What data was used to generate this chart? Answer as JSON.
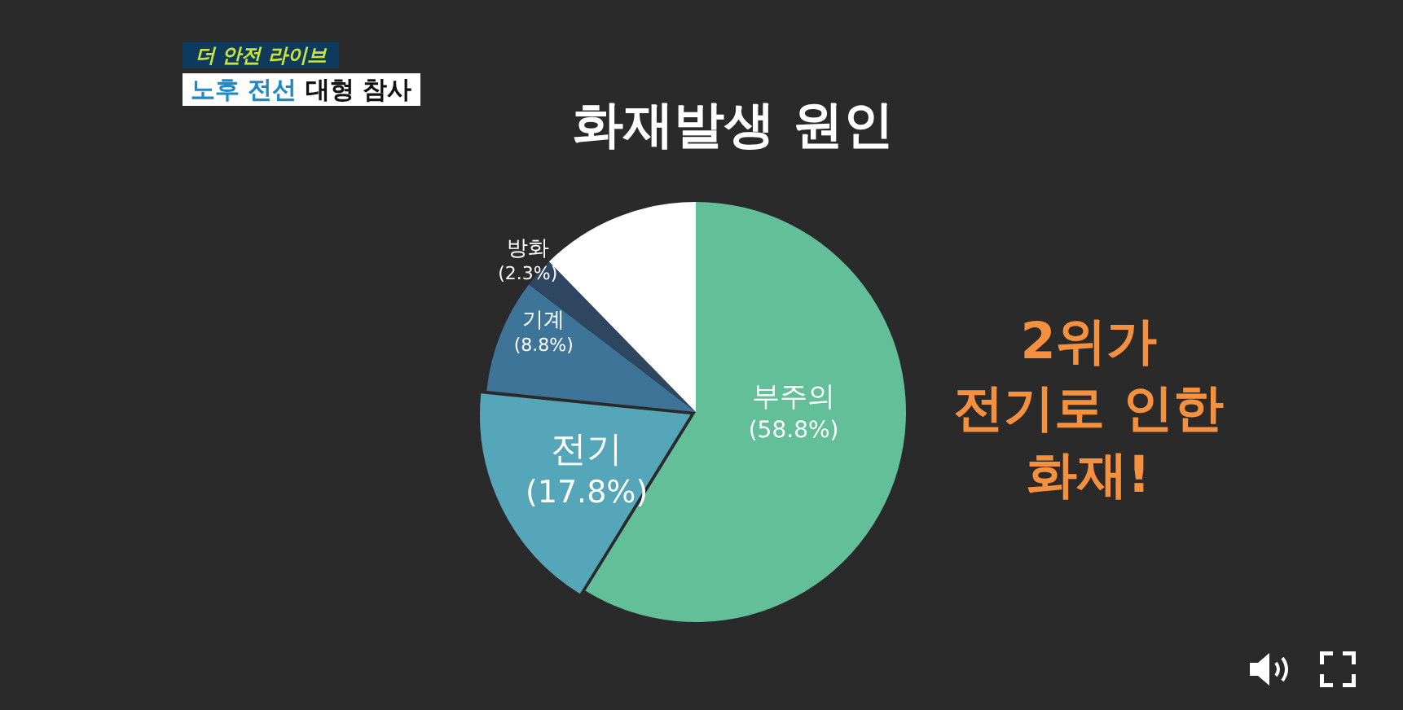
{
  "chart_data": {
    "type": "pie",
    "title": "화재발생 원인",
    "categories": [
      "부주의",
      "전기",
      "기계",
      "방화",
      null
    ],
    "values": [
      58.8,
      17.8,
      8.8,
      2.3,
      12.3
    ],
    "colors": [
      "#63bf9a",
      "#56a6b9",
      "#3f7499",
      "#2f4661",
      "#ffffff"
    ],
    "value_labels": [
      "(58.8%)",
      "(17.8%)",
      "(8.8%)",
      "(2.3%)",
      null
    ],
    "annotations": [
      "더 안전 라이브",
      "노후 전선 대형 참사",
      "2위가\n전기로 인한\n화재!"
    ]
  }
}
